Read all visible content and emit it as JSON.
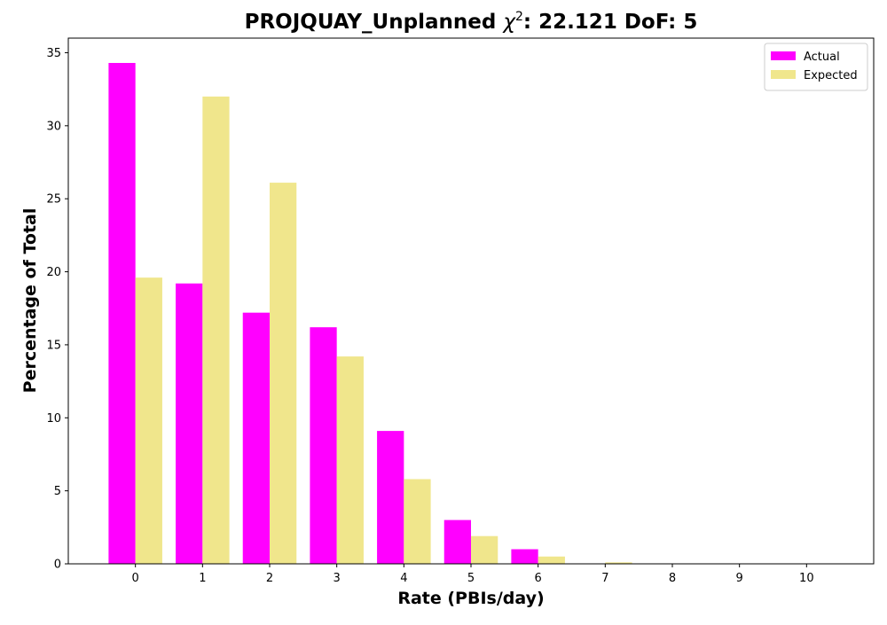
{
  "chart_data": {
    "type": "bar",
    "title": {
      "prefix": "PROJQUAY_Unplanned ",
      "chi": "χ",
      "sup": "2",
      "suffix": ": 22.121 DoF: 5"
    },
    "xlabel": "Rate (PBIs/day)",
    "ylabel": "Percentage of Total",
    "categories": [
      "0",
      "1",
      "2",
      "3",
      "4",
      "5",
      "6",
      "7",
      "8",
      "9",
      "10"
    ],
    "x": [
      0,
      1,
      2,
      3,
      4,
      5,
      6,
      7,
      8,
      9,
      10
    ],
    "series": [
      {
        "name": "Actual",
        "color": "#ff00ff",
        "values": [
          34.3,
          19.2,
          17.2,
          16.2,
          9.1,
          3.0,
          1.0,
          0.0,
          0.0,
          0.0,
          0.0
        ]
      },
      {
        "name": "Expected",
        "color": "#f0e68c",
        "values": [
          19.6,
          32.0,
          26.1,
          14.2,
          5.8,
          1.9,
          0.5,
          0.1,
          0.03,
          0.0,
          0.0
        ]
      }
    ],
    "xlim": [
      -1,
      11
    ],
    "ylim": [
      0,
      36
    ],
    "yticks": [
      0,
      5,
      10,
      15,
      20,
      25,
      30,
      35
    ],
    "legend": "top-right",
    "grid": false
  }
}
